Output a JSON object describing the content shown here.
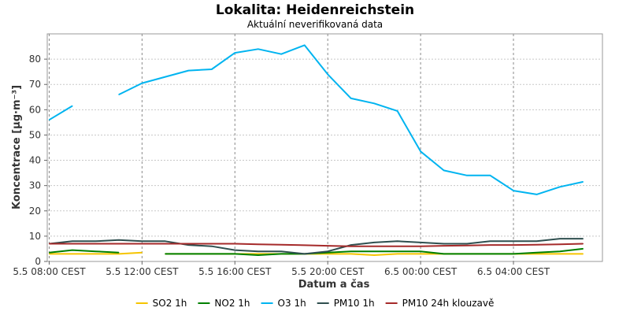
{
  "chart_data": {
    "type": "line",
    "title": "Lokalita: Heidenreichstein",
    "subtitle": "Aktuální neverifikovaná data",
    "xlabel": "Datum a čas",
    "ylabel": "Koncentrace [µg·m⁻³]",
    "ylim": [
      0,
      90
    ],
    "yticks": [
      0,
      10,
      20,
      30,
      40,
      50,
      60,
      70,
      80
    ],
    "xlim": [
      "2024-05-05 07:55",
      "2024-05-06 07:50"
    ],
    "xticks": [
      {
        "x": "2024-05-05 08:00",
        "label": "5.5 08:00 CEST"
      },
      {
        "x": "2024-05-05 12:00",
        "label": "5.5 12:00 CEST"
      },
      {
        "x": "2024-05-05 16:00",
        "label": "5.5 16:00 CEST"
      },
      {
        "x": "2024-05-05 20:00",
        "label": "5.5 20:00 CEST"
      },
      {
        "x": "2024-05-06 00:00",
        "label": "6.5 00:00 CEST"
      },
      {
        "x": "2024-05-06 04:00",
        "label": "6.5 04:00 CEST"
      }
    ],
    "grid": true,
    "legend_position": "bottom",
    "series": [
      {
        "name": "SO2 1h",
        "color": "#f5c400",
        "points": [
          [
            "2024-05-05 08:00",
            3
          ],
          [
            "2024-05-05 09:00",
            3
          ],
          [
            "2024-05-05 10:00",
            3
          ],
          [
            "2024-05-05 11:00",
            3
          ],
          [
            "2024-05-05 12:00",
            3.5
          ],
          null,
          [
            "2024-05-05 13:00",
            3
          ],
          [
            "2024-05-05 14:00",
            3
          ],
          [
            "2024-05-05 15:00",
            3
          ],
          [
            "2024-05-05 16:00",
            3
          ],
          [
            "2024-05-05 17:00",
            3
          ],
          [
            "2024-05-05 18:00",
            3
          ],
          [
            "2024-05-05 19:00",
            3
          ],
          [
            "2024-05-05 20:00",
            3
          ],
          [
            "2024-05-05 21:00",
            3
          ],
          [
            "2024-05-05 22:00",
            2.5
          ],
          [
            "2024-05-05 23:00",
            3
          ],
          [
            "2024-05-06 00:00",
            3
          ],
          [
            "2024-05-06 01:00",
            3
          ],
          [
            "2024-05-06 02:00",
            3
          ],
          [
            "2024-05-06 03:00",
            3
          ],
          [
            "2024-05-06 04:00",
            3
          ],
          [
            "2024-05-06 05:00",
            3
          ],
          [
            "2024-05-06 06:00",
            3
          ],
          [
            "2024-05-06 07:00",
            3
          ]
        ]
      },
      {
        "name": "NO2 1h",
        "color": "#008000",
        "points": [
          [
            "2024-05-05 08:00",
            3.5
          ],
          [
            "2024-05-05 09:00",
            4.5
          ],
          [
            "2024-05-05 10:00",
            4
          ],
          [
            "2024-05-05 11:00",
            3.5
          ],
          null,
          [
            "2024-05-05 13:00",
            3
          ],
          [
            "2024-05-05 14:00",
            3
          ],
          [
            "2024-05-05 15:00",
            3
          ],
          [
            "2024-05-05 16:00",
            3
          ],
          [
            "2024-05-05 17:00",
            2.5
          ],
          [
            "2024-05-05 18:00",
            3
          ],
          [
            "2024-05-05 19:00",
            3
          ],
          [
            "2024-05-05 20:00",
            3.5
          ],
          [
            "2024-05-05 21:00",
            4
          ],
          [
            "2024-05-05 22:00",
            4
          ],
          [
            "2024-05-05 23:00",
            4
          ],
          [
            "2024-05-06 00:00",
            4
          ],
          [
            "2024-05-06 01:00",
            3
          ],
          [
            "2024-05-06 02:00",
            3
          ],
          [
            "2024-05-06 03:00",
            3
          ],
          [
            "2024-05-06 04:00",
            3
          ],
          [
            "2024-05-06 05:00",
            3.5
          ],
          [
            "2024-05-06 06:00",
            4
          ],
          [
            "2024-05-06 07:00",
            5
          ]
        ]
      },
      {
        "name": "O3 1h",
        "color": "#00b4f0",
        "points": [
          [
            "2024-05-05 08:00",
            56
          ],
          [
            "2024-05-05 09:00",
            61.5
          ],
          null,
          [
            "2024-05-05 11:00",
            66
          ],
          [
            "2024-05-05 12:00",
            70.5
          ],
          [
            "2024-05-05 13:00",
            73
          ],
          [
            "2024-05-05 14:00",
            75.5
          ],
          [
            "2024-05-05 15:00",
            76
          ],
          [
            "2024-05-05 16:00",
            82.5
          ],
          [
            "2024-05-05 17:00",
            84
          ],
          [
            "2024-05-05 18:00",
            82
          ],
          [
            "2024-05-05 19:00",
            85.5
          ],
          [
            "2024-05-05 20:00",
            74
          ],
          [
            "2024-05-05 21:00",
            64.5
          ],
          [
            "2024-05-05 22:00",
            62.5
          ],
          [
            "2024-05-05 23:00",
            59.5
          ],
          [
            "2024-05-06 00:00",
            43.5
          ],
          [
            "2024-05-06 01:00",
            36
          ],
          [
            "2024-05-06 02:00",
            34
          ],
          [
            "2024-05-06 03:00",
            34
          ],
          [
            "2024-05-06 04:00",
            28
          ],
          [
            "2024-05-06 05:00",
            26.5
          ],
          [
            "2024-05-06 06:00",
            29.5
          ],
          [
            "2024-05-06 07:00",
            31.5
          ]
        ]
      },
      {
        "name": "PM10 1h",
        "color": "#2f4f4f",
        "points": [
          [
            "2024-05-05 08:00",
            7
          ],
          [
            "2024-05-05 09:00",
            8
          ],
          [
            "2024-05-05 10:00",
            8
          ],
          [
            "2024-05-05 11:00",
            8.5
          ],
          [
            "2024-05-05 12:00",
            8
          ],
          [
            "2024-05-05 13:00",
            8
          ],
          [
            "2024-05-05 14:00",
            6.5
          ],
          [
            "2024-05-05 15:00",
            6
          ],
          [
            "2024-05-05 16:00",
            4.5
          ],
          [
            "2024-05-05 17:00",
            4
          ],
          [
            "2024-05-05 18:00",
            4
          ],
          [
            "2024-05-05 19:00",
            3
          ],
          [
            "2024-05-05 20:00",
            4
          ],
          [
            "2024-05-05 21:00",
            6.5
          ],
          [
            "2024-05-05 22:00",
            7.5
          ],
          [
            "2024-05-05 23:00",
            8
          ],
          [
            "2024-05-06 00:00",
            7.5
          ],
          [
            "2024-05-06 01:00",
            7
          ],
          [
            "2024-05-06 02:00",
            7
          ],
          [
            "2024-05-06 03:00",
            8
          ],
          [
            "2024-05-06 04:00",
            8
          ],
          [
            "2024-05-06 05:00",
            8
          ],
          [
            "2024-05-06 06:00",
            9
          ],
          [
            "2024-05-06 07:00",
            9
          ]
        ]
      },
      {
        "name": "PM10 24h klouzavě",
        "color": "#a52a2a",
        "points": [
          [
            "2024-05-05 08:00",
            7
          ],
          [
            "2024-05-05 09:00",
            7
          ],
          [
            "2024-05-05 10:00",
            7
          ],
          [
            "2024-05-05 11:00",
            7
          ],
          [
            "2024-05-05 12:00",
            7
          ],
          [
            "2024-05-05 13:00",
            7
          ],
          [
            "2024-05-05 14:00",
            7
          ],
          [
            "2024-05-05 15:00",
            7
          ],
          [
            "2024-05-05 16:00",
            7
          ],
          [
            "2024-05-05 17:00",
            6.8
          ],
          [
            "2024-05-05 18:00",
            6.6
          ],
          [
            "2024-05-05 19:00",
            6.4
          ],
          [
            "2024-05-05 20:00",
            6.2
          ],
          [
            "2024-05-05 21:00",
            6
          ],
          [
            "2024-05-05 22:00",
            6
          ],
          [
            "2024-05-05 23:00",
            6
          ],
          [
            "2024-05-06 00:00",
            6
          ],
          [
            "2024-05-06 01:00",
            6.2
          ],
          [
            "2024-05-06 02:00",
            6.3
          ],
          [
            "2024-05-06 03:00",
            6.5
          ],
          [
            "2024-05-06 04:00",
            6.5
          ],
          [
            "2024-05-06 05:00",
            6.6
          ],
          [
            "2024-05-06 06:00",
            6.8
          ],
          [
            "2024-05-06 07:00",
            7
          ]
        ]
      }
    ]
  }
}
